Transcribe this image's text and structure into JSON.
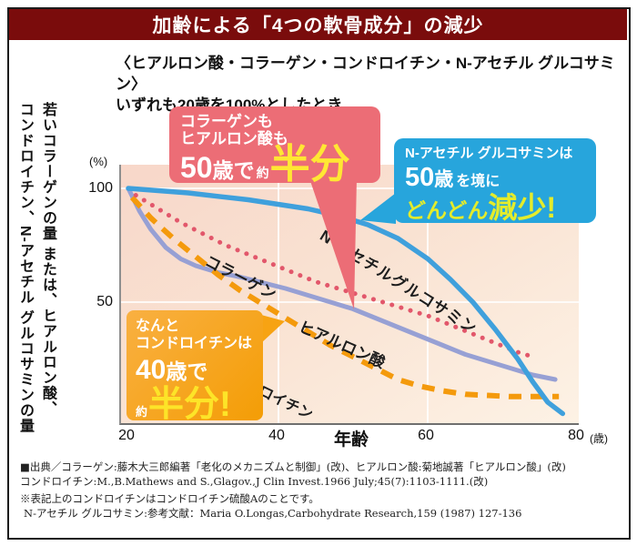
{
  "page": {
    "title": "加齢による「4つの軟骨成分」の減少"
  },
  "subtitle": {
    "line1": "〈ヒアルロン酸・コラーゲン・コンドロイチン・N-アセチル グルコサミン〉",
    "line2": "いずれも20歳を100%としたとき"
  },
  "y_axis_vertical_label": {
    "col1": "若いコラーゲンの量 または、ヒアルロン酸、",
    "col2": "コンドロイチン、N-アセチル グルコサミンの量"
  },
  "axes": {
    "y_unit": "(%)",
    "y_tick_100": "100",
    "y_tick_50": "50",
    "x_tick_20": "20",
    "x_tick_40": "40",
    "x_tick_60": "60",
    "x_tick_80": "80",
    "x_unit": "(歳)",
    "x_label": "年齢"
  },
  "callouts": {
    "pink": {
      "bg": "#ec6d76",
      "line1": "コラーゲンも",
      "line2": "ヒアルロン酸も",
      "age": "50",
      "age_suffix": "歳で",
      "approx": "約",
      "big": "半分",
      "big_color": "#ffe733"
    },
    "blue": {
      "bg": "#27a5dc",
      "line1": "N-アセチル グルコサミンは",
      "age": "50",
      "age_suffix": "歳",
      "rest": "を境に",
      "emph1": "どんどん",
      "emph2": "減少!",
      "emph_color": "#e4ec2b"
    },
    "orange": {
      "bg": "#f7a313",
      "line1": "なんと",
      "line2": "コンドロイチンは",
      "age": "40",
      "age_suffix": "歳で",
      "approx": "約",
      "big": "半分!",
      "big_color": "#fde428"
    }
  },
  "footer": {
    "lines": [
      "■出典／コラーゲン:藤木大三郎編著「老化のメカニズムと制御」(改)、ヒアルロン酸:菊地誠著「ヒアルロン酸」(改)",
      "コンドロイチン:M.,B.Mathews and S.,Glagov.,J Clin Invest.1966 July;45(7):1103-1111.(改)",
      "※表記上のコンドロイチンはコンドロイチン硫酸Aのことです。",
      "N-アセチル グルコサミン:参考文献：Maria O.Longas,Carbohydrate Research,159 (1987) 127-136"
    ]
  },
  "chart_data": {
    "type": "line",
    "title": "加齢による「4つの軟骨成分」の減少",
    "subtitle": "いずれも20歳を100%としたとき",
    "xlabel": "年齢",
    "x_unit": "歳",
    "ylabel": "%",
    "xlim": [
      20,
      80
    ],
    "ylim": [
      0,
      100
    ],
    "x_ticks": [
      20,
      40,
      60,
      80
    ],
    "y_ticks": [
      50,
      100
    ],
    "grid": true,
    "legend_position": "on-curve",
    "series": [
      {
        "id": "hyaluronic-acid",
        "label": "ヒアルロン酸",
        "color": "#97a0d4",
        "style": "solid",
        "width": 5,
        "points": [
          [
            20,
            100
          ],
          [
            21.5,
            90
          ],
          [
            23,
            82
          ],
          [
            25,
            74
          ],
          [
            27,
            69
          ],
          [
            29,
            66
          ],
          [
            32,
            63
          ],
          [
            35,
            61
          ],
          [
            38,
            58.5
          ],
          [
            41,
            56
          ],
          [
            44,
            53
          ],
          [
            47,
            50
          ],
          [
            50,
            47
          ],
          [
            53,
            43
          ],
          [
            56,
            39
          ],
          [
            59,
            35
          ],
          [
            62,
            31
          ],
          [
            65,
            27
          ],
          [
            68,
            24
          ],
          [
            71,
            21
          ],
          [
            74,
            18
          ],
          [
            77,
            16
          ]
        ]
      },
      {
        "id": "chondroitin",
        "label": "コンドロイチン",
        "color": "#f49a0c",
        "style": "dashed",
        "width": 6,
        "points": [
          [
            20.5,
            96
          ],
          [
            23,
            87
          ],
          [
            26,
            78
          ],
          [
            29,
            70
          ],
          [
            32,
            62
          ],
          [
            35,
            55
          ],
          [
            38,
            49
          ],
          [
            41,
            43
          ],
          [
            44,
            37
          ],
          [
            47,
            31
          ],
          [
            50,
            26
          ],
          [
            53,
            21
          ],
          [
            56,
            16
          ],
          [
            59,
            13
          ],
          [
            62,
            11
          ],
          [
            65,
            9.5
          ],
          [
            68,
            9
          ],
          [
            71,
            8.5
          ],
          [
            74,
            8.5
          ],
          [
            77.5,
            8.5
          ]
        ]
      },
      {
        "id": "collagen",
        "label": "コラーゲン",
        "color": "#e2576b",
        "style": "dotted",
        "width": 5,
        "points": [
          [
            21,
            97
          ],
          [
            24,
            91
          ],
          [
            27,
            85
          ],
          [
            30,
            80
          ],
          [
            33,
            75
          ],
          [
            36,
            71
          ],
          [
            39,
            67
          ],
          [
            42,
            63
          ],
          [
            45,
            59
          ],
          [
            48,
            56
          ],
          [
            51,
            53
          ],
          [
            54,
            50
          ],
          [
            57,
            47
          ],
          [
            60,
            44
          ],
          [
            63,
            40
          ],
          [
            66,
            36
          ],
          [
            69,
            32
          ],
          [
            72,
            28
          ],
          [
            74,
            26
          ]
        ]
      },
      {
        "id": "n-acetylglucosamine",
        "label": "N-アセチルグルコサミン",
        "color": "#3fa0dc",
        "style": "solid",
        "width": 5.5,
        "points": [
          [
            20,
            100
          ],
          [
            24,
            99
          ],
          [
            28,
            98
          ],
          [
            32,
            96.5
          ],
          [
            36,
            95
          ],
          [
            40,
            93
          ],
          [
            44,
            91
          ],
          [
            48,
            88
          ],
          [
            52,
            84
          ],
          [
            56,
            78
          ],
          [
            60,
            69
          ],
          [
            63,
            60
          ],
          [
            66,
            50
          ],
          [
            69,
            38
          ],
          [
            72,
            25
          ],
          [
            74,
            15
          ],
          [
            76,
            6
          ],
          [
            78,
            1
          ]
        ]
      }
    ]
  }
}
